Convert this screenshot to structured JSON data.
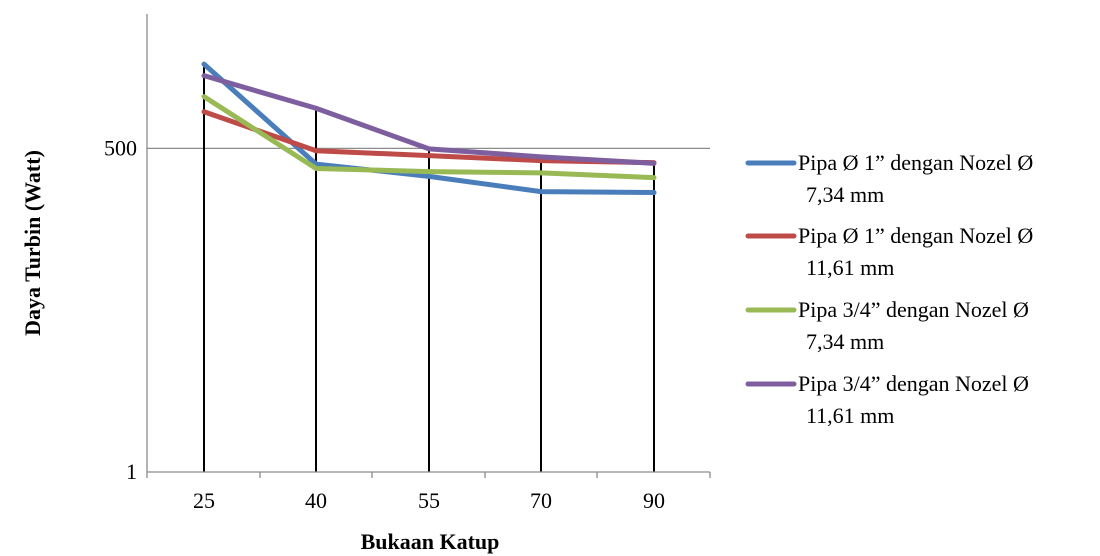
{
  "chart_data": {
    "type": "line",
    "xlabel": "Bukaan Katup",
    "ylabel": "Daya Turbin (Watt)",
    "categories": [
      "25",
      "40",
      "55",
      "70",
      "90"
    ],
    "y_ticks": [
      "1",
      "500"
    ],
    "y_scale": "log",
    "ylim": [
      1,
      6600
    ],
    "grid": "horizontal major lines",
    "drop_lines": true,
    "legend_position": "right",
    "series": [
      {
        "name": "Pipa Ø 1” dengan Nozel Ø 7,34 mm",
        "legend_lines": [
          "Pipa Ø 1” dengan Nozel Ø",
          "7,34 mm"
        ],
        "color": "#4a7ebb",
        "values": [
          2520,
          370,
          292,
          218,
          214
        ]
      },
      {
        "name": "Pipa Ø 1” dengan Nozel Ø 11,61 mm",
        "legend_lines": [
          "Pipa Ø 1” dengan Nozel Ø",
          "11,61 mm"
        ],
        "color": "#be4b48",
        "values": [
          1010,
          478,
          435,
          395,
          380
        ]
      },
      {
        "name": "Pipa 3/4” dengan Nozel Ø 7,34 mm",
        "legend_lines": [
          "Pipa 3/4” dengan Nozel Ø",
          "7,34 mm"
        ],
        "color": "#98b954",
        "values": [
          1350,
          340,
          320,
          312,
          285
        ]
      },
      {
        "name": "Pipa 3/4” dengan Nozel Ø 11,61 mm",
        "legend_lines": [
          "Pipa 3/4” dengan Nozel Ø",
          "11,61 mm"
        ],
        "color": "#7d5fa0",
        "values": [
          2020,
          1080,
          495,
          425,
          375
        ]
      }
    ]
  }
}
